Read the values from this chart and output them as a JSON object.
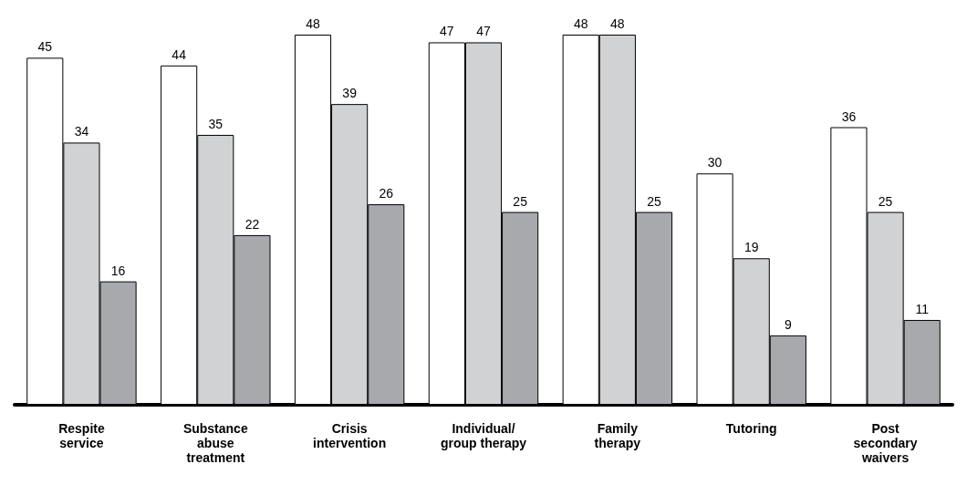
{
  "chart_data": {
    "type": "bar",
    "categories": [
      "Respite\nservice",
      "Substance\nabuse\ntreatment",
      "Crisis\nintervention",
      "Individual/\ngroup therapy",
      "Family\ntherapy",
      "Tutoring",
      "Post\nsecondary\nwaivers"
    ],
    "series": [
      {
        "color": "#ffffff",
        "values": [
          45,
          44,
          48,
          47,
          48,
          30,
          36
        ]
      },
      {
        "color": "#d1d2d4",
        "values": [
          34,
          35,
          39,
          47,
          48,
          19,
          25
        ]
      },
      {
        "color": "#a7a9ac",
        "values": [
          16,
          22,
          26,
          25,
          25,
          9,
          11
        ]
      }
    ],
    "data_labels": true
  }
}
